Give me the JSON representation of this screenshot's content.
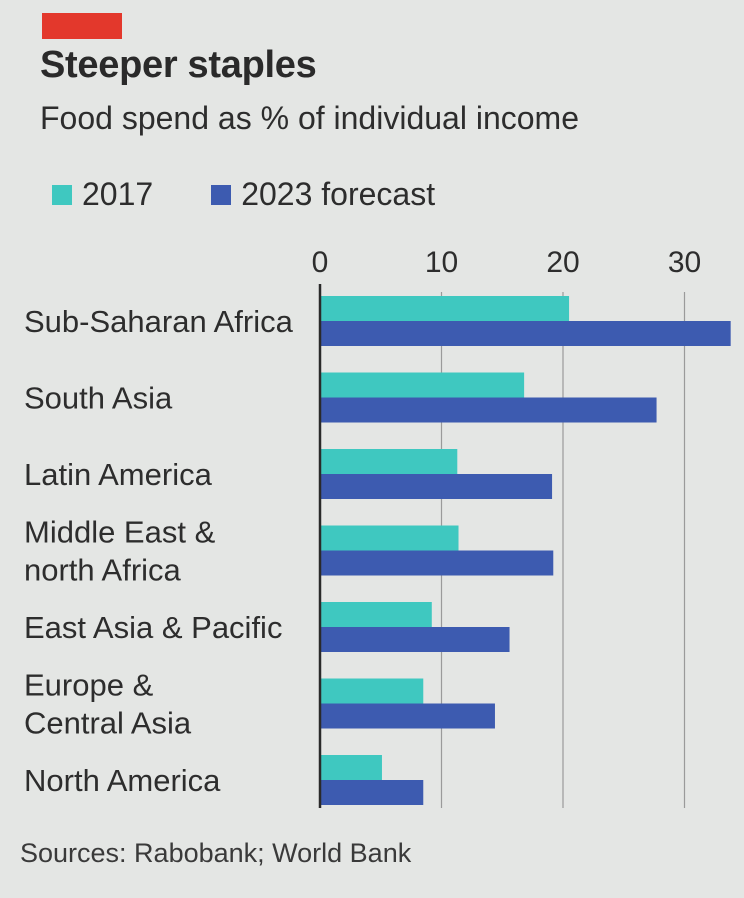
{
  "header": {
    "title": "Steeper staples",
    "subtitle": "Food spend as % of individual income"
  },
  "footer": {
    "source": "Sources: Rabobank; World Bank"
  },
  "colors": {
    "accent_tag": "#e3382c",
    "series_2017": "#3fc8c0",
    "series_2023": "#3d5bb0",
    "axis": "#2a2a2a",
    "grid": "#9a9a9a",
    "text": "#2d2d2d"
  },
  "chart_data": {
    "type": "bar",
    "orientation": "horizontal",
    "title": "Steeper staples",
    "subtitle": "Food spend as % of individual income",
    "categories": [
      [
        "Sub-Saharan Africa"
      ],
      [
        "South Asia"
      ],
      [
        "Latin America"
      ],
      [
        "Middle East &",
        "north Africa"
      ],
      [
        "East Asia & Pacific"
      ],
      [
        "Europe &",
        "Central Asia"
      ],
      [
        "North America"
      ]
    ],
    "series": [
      {
        "name": "2017",
        "values": [
          20.5,
          16.8,
          11.3,
          11.4,
          9.2,
          8.5,
          5.1
        ]
      },
      {
        "name": "2023 forecast",
        "values": [
          33.8,
          27.7,
          19.1,
          19.2,
          15.6,
          14.4,
          8.5
        ]
      }
    ],
    "xlim": [
      0,
      34
    ],
    "xticks": [
      0,
      10,
      20,
      30
    ],
    "grid": true,
    "legend_position": "top-left"
  }
}
